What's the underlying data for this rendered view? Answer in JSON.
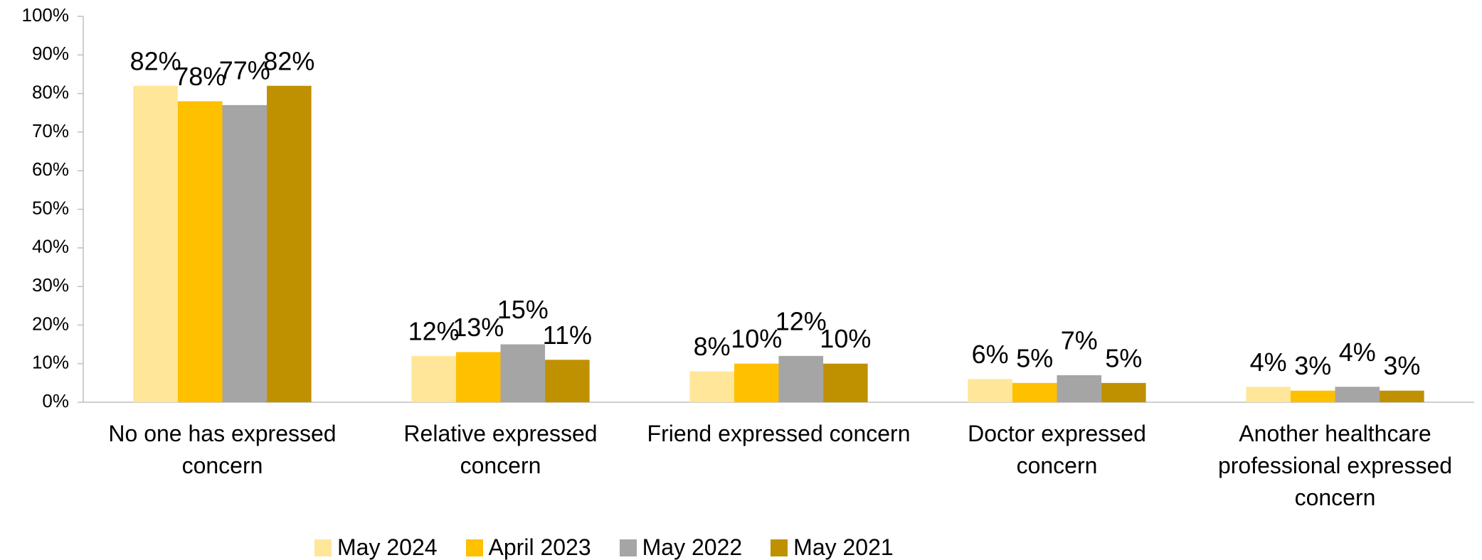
{
  "chart_data": {
    "type": "bar",
    "categories": [
      "No one has expressed concern",
      "Relative expressed concern",
      "Friend expressed concern",
      "Doctor expressed concern",
      "Another healthcare professional expressed concern"
    ],
    "series": [
      {
        "name": "May 2024",
        "color": "#FFE699",
        "values": [
          82,
          12,
          8,
          6,
          4
        ],
        "value_labels": [
          "82%",
          "12%",
          "8%",
          "6%",
          "4%"
        ]
      },
      {
        "name": "April 2023",
        "color": "#FFC000",
        "values": [
          78,
          13,
          10,
          5,
          3
        ],
        "value_labels": [
          "78%",
          "13%",
          "10%",
          "5%",
          "3%"
        ]
      },
      {
        "name": "May 2022",
        "color": "#A5A5A5",
        "values": [
          77,
          15,
          12,
          7,
          4
        ],
        "value_labels": [
          "77%",
          "15%",
          "12%",
          "7%",
          "4%"
        ]
      },
      {
        "name": "May 2021",
        "color": "#BF9000",
        "values": [
          82,
          11,
          10,
          5,
          3
        ],
        "value_labels": [
          "82%",
          "11%",
          "10%",
          "5%",
          "3%"
        ]
      }
    ],
    "ylim": [
      0,
      100
    ],
    "yticks": [
      {
        "value": 0,
        "label": "0%"
      },
      {
        "value": 10,
        "label": "10%"
      },
      {
        "value": 20,
        "label": "20%"
      },
      {
        "value": 30,
        "label": "30%"
      },
      {
        "value": 40,
        "label": "40%"
      },
      {
        "value": 50,
        "label": "50%"
      },
      {
        "value": 60,
        "label": "60%"
      },
      {
        "value": 70,
        "label": "70%"
      },
      {
        "value": 80,
        "label": "80%"
      },
      {
        "value": 90,
        "label": "90%"
      },
      {
        "value": 100,
        "label": "100%"
      }
    ],
    "grid": false,
    "legend": "bottom"
  }
}
